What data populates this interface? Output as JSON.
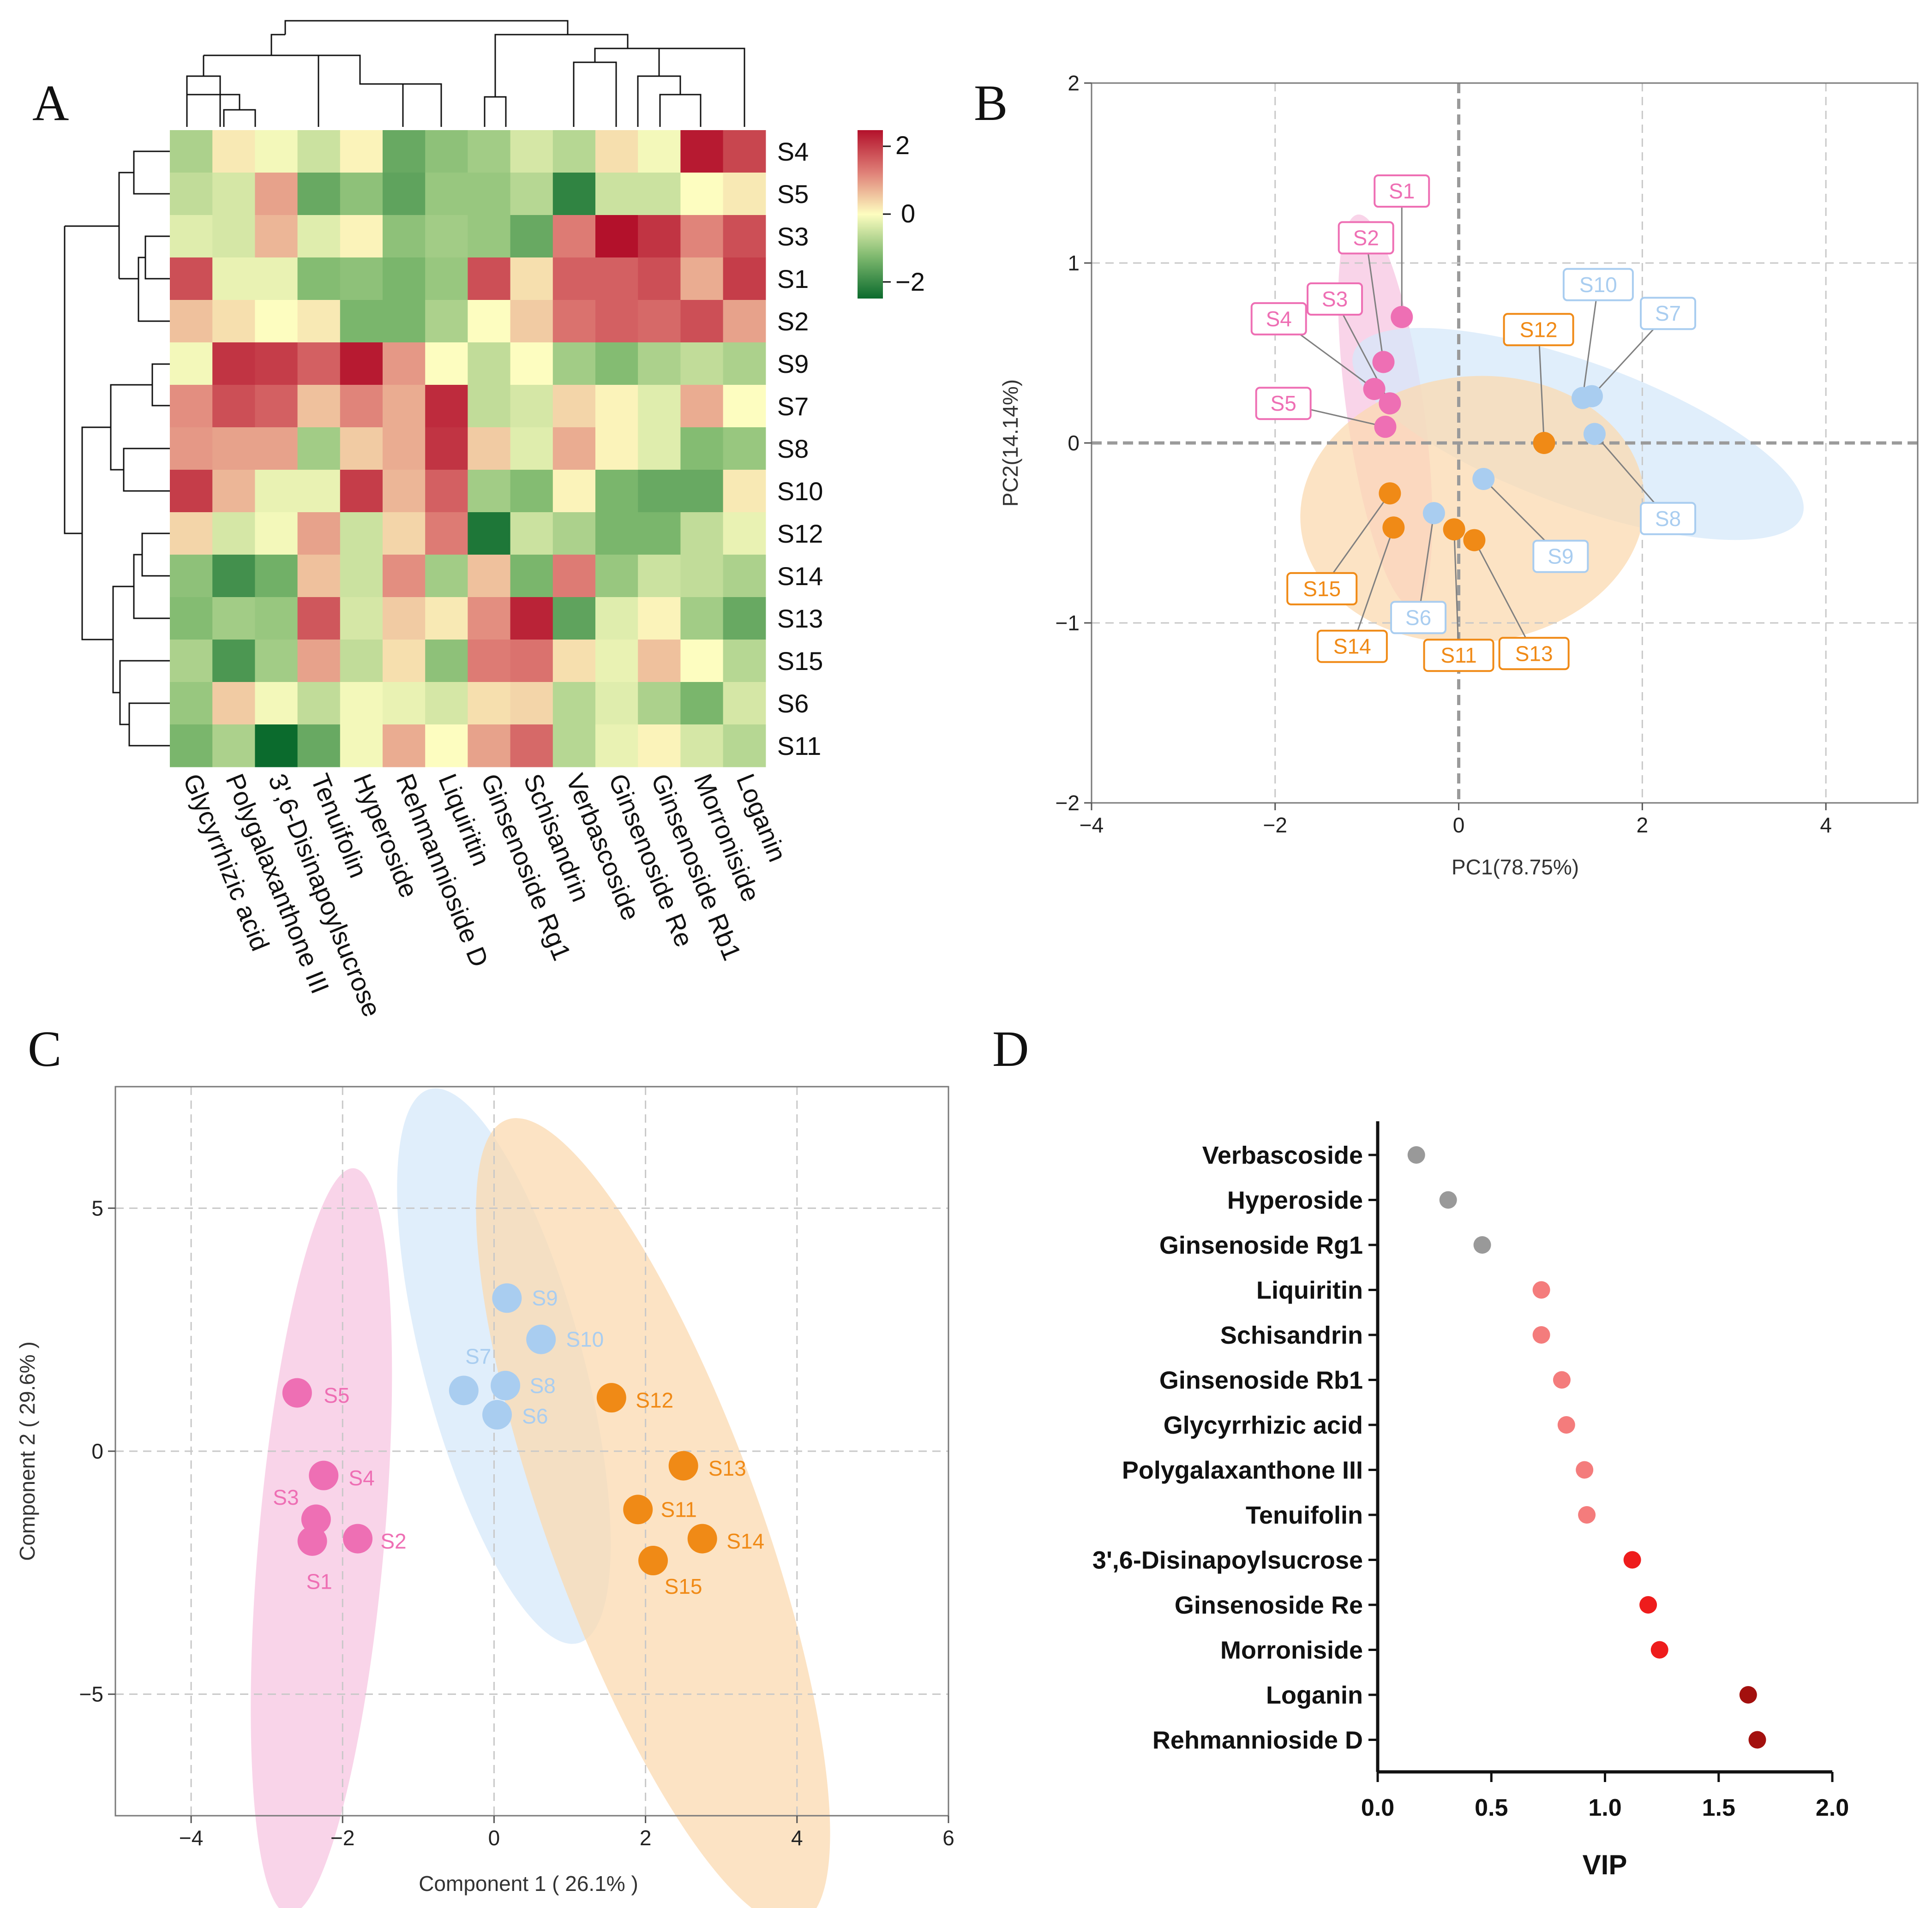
{
  "panels": {
    "a": "A",
    "b": "B",
    "c": "C",
    "d": "D"
  },
  "colors": {
    "pink": "#ee6fb4",
    "blue": "#a9cdf0",
    "orange": "#f08a16",
    "pink_fill": "#f7c6e1",
    "blue_fill": "#d6e8fa",
    "orange_fill": "#fbd9b0",
    "vip_gray": "#999999",
    "vip_light": "#f47c7c",
    "vip_red": "#ee1c1c",
    "vip_dark": "#a3100e",
    "heat_neg": "#0b6b2d",
    "heat_mid": "#fdfdc0",
    "heat_pos": "#b3112b"
  },
  "chart_data": [
    {
      "type": "heatmap",
      "panel": "A",
      "rows": [
        "S4",
        "S5",
        "S3",
        "S1",
        "S2",
        "S9",
        "S7",
        "S8",
        "S10",
        "S12",
        "S14",
        "S13",
        "S15",
        "S6",
        "S11"
      ],
      "columns": [
        "Glycyrrhizic acid",
        "Polygalaxanthone III",
        "3',6-Disinapoylsucrose",
        "Tenuifolin",
        "Hyperoside",
        "Rehmannioside D",
        "Liquiritin",
        "Ginsenoside Rg1",
        "Schisandrin",
        "Verbascoside",
        "Ginsenoside Re",
        "Ginsenoside Rb1",
        "Morroniside",
        "Loganin"
      ],
      "values": [
        [
          -0.8,
          0.2,
          -0.1,
          -0.5,
          0.1,
          -1.5,
          -1.1,
          -0.9,
          -0.4,
          -0.7,
          0.3,
          -0.1,
          2.4,
          1.9
        ],
        [
          -0.6,
          -0.4,
          0.9,
          -1.5,
          -1.1,
          -1.6,
          -1.0,
          -1.0,
          -0.7,
          -2.1,
          -0.5,
          -0.5,
          0.0,
          0.2
        ],
        [
          -0.3,
          -0.4,
          0.7,
          -0.3,
          0.1,
          -1.1,
          -0.9,
          -1.0,
          -1.5,
          1.3,
          2.5,
          2.1,
          1.2,
          1.8
        ],
        [
          1.8,
          -0.2,
          -0.2,
          -1.2,
          -1.1,
          -1.3,
          -1.0,
          1.8,
          0.3,
          1.6,
          1.6,
          1.8,
          0.8,
          2.0
        ],
        [
          0.6,
          0.3,
          0.0,
          0.2,
          -1.3,
          -1.3,
          -0.8,
          0.0,
          0.5,
          1.4,
          1.6,
          1.5,
          1.8,
          0.9
        ],
        [
          -0.1,
          2.1,
          2.0,
          1.6,
          2.4,
          1.0,
          0.0,
          -0.6,
          0.0,
          -0.9,
          -1.2,
          -0.8,
          -0.6,
          -0.8
        ],
        [
          1.1,
          1.8,
          1.6,
          0.6,
          1.2,
          0.8,
          2.2,
          -0.6,
          -0.4,
          0.4,
          0.1,
          -0.3,
          0.8,
          0.0
        ],
        [
          1.0,
          0.9,
          0.9,
          -0.9,
          0.5,
          0.8,
          2.1,
          0.5,
          -0.3,
          0.8,
          0.1,
          -0.3,
          -1.2,
          -1.0
        ],
        [
          2.0,
          0.7,
          -0.2,
          -0.2,
          2.0,
          0.7,
          1.6,
          -0.9,
          -1.2,
          0.1,
          -1.3,
          -1.5,
          -1.5,
          0.2
        ],
        [
          0.4,
          -0.4,
          -0.1,
          0.9,
          -0.5,
          0.4,
          1.3,
          -2.3,
          -0.5,
          -0.8,
          -1.3,
          -1.3,
          -0.6,
          -0.2
        ],
        [
          -1.1,
          -1.9,
          -1.4,
          0.6,
          -0.5,
          1.1,
          -0.9,
          0.6,
          -1.3,
          1.3,
          -1.0,
          -0.5,
          -0.6,
          -0.8
        ],
        [
          -1.2,
          -0.9,
          -1.0,
          1.7,
          -0.4,
          0.5,
          0.2,
          1.1,
          2.3,
          -1.6,
          -0.3,
          0.1,
          -0.9,
          -1.5
        ],
        [
          -0.8,
          -1.8,
          -0.9,
          0.9,
          -0.6,
          0.3,
          -1.1,
          1.3,
          1.4,
          0.3,
          -0.2,
          0.6,
          0.0,
          -0.7
        ],
        [
          -1.0,
          0.5,
          -0.1,
          -0.6,
          -0.1,
          -0.2,
          -0.4,
          0.3,
          0.4,
          -0.7,
          -0.3,
          -0.8,
          -1.3,
          -0.4
        ],
        [
          -1.3,
          -0.8,
          -2.5,
          -1.5,
          -0.1,
          0.8,
          0.0,
          0.9,
          1.5,
          -0.7,
          -0.2,
          0.1,
          -0.4,
          -0.7
        ]
      ],
      "legend_ticks": [
        "2",
        "0",
        "−2"
      ],
      "legend_range": [
        -2.5,
        2.5
      ]
    },
    {
      "type": "scatter",
      "panel": "B",
      "xlabel": "PC1(78.75%)",
      "ylabel": "PC2(14.14%)",
      "xlim": [
        -4,
        5
      ],
      "ylim": [
        -2,
        2
      ],
      "xticks": [
        {
          "v": -4,
          "t": "−4"
        },
        {
          "v": -2,
          "t": "−2"
        },
        {
          "v": 0,
          "t": "0"
        },
        {
          "v": 2,
          "t": "2"
        },
        {
          "v": 4,
          "t": "4"
        }
      ],
      "yticks": [
        {
          "v": -2,
          "t": "−2"
        },
        {
          "v": -1,
          "t": "−1"
        },
        {
          "v": 0,
          "t": "0"
        },
        {
          "v": 1,
          "t": "1"
        },
        {
          "v": 2,
          "t": "2"
        }
      ],
      "groups": [
        {
          "name": "pink",
          "ellipse": {
            "cx": -0.8,
            "cy": 0.18,
            "rx": 0.42,
            "ry": 1.1,
            "angle": 8
          },
          "points": [
            {
              "label": "S1",
              "x": -0.62,
              "y": 0.7,
              "lx": -0.62,
              "ly": 1.4
            },
            {
              "label": "S2",
              "x": -0.82,
              "y": 0.45,
              "lx": -1.01,
              "ly": 1.14
            },
            {
              "label": "S3",
              "x": -0.75,
              "y": 0.22,
              "lx": -1.35,
              "ly": 0.8
            },
            {
              "label": "S4",
              "x": -0.92,
              "y": 0.3,
              "lx": -1.96,
              "ly": 0.69
            },
            {
              "label": "S5",
              "x": -0.8,
              "y": 0.09,
              "lx": -1.91,
              "ly": 0.22
            }
          ]
        },
        {
          "name": "blue",
          "ellipse": {
            "cx": 1.3,
            "cy": 0.05,
            "rx": 2.6,
            "ry": 0.4,
            "angle": -20
          },
          "points": [
            {
              "label": "S10",
              "x": 1.35,
              "y": 0.25,
              "lx": 1.52,
              "ly": 0.88
            },
            {
              "label": "S7",
              "x": 1.45,
              "y": 0.26,
              "lx": 2.28,
              "ly": 0.72
            },
            {
              "label": "S8",
              "x": 1.48,
              "y": 0.05,
              "lx": 2.28,
              "ly": -0.42
            },
            {
              "label": "S9",
              "x": 0.27,
              "y": -0.2,
              "lx": 1.11,
              "ly": -0.63
            },
            {
              "label": "S6",
              "x": -0.27,
              "y": -0.39,
              "lx": -0.44,
              "ly": -0.97
            }
          ]
        },
        {
          "name": "orange",
          "ellipse": {
            "cx": 0.15,
            "cy": -0.37,
            "rx": 1.88,
            "ry": 0.74,
            "angle": 6
          },
          "points": [
            {
              "label": "S12",
              "x": 0.93,
              "y": 0.0,
              "lx": 0.87,
              "ly": 0.63
            },
            {
              "label": "S15",
              "x": -0.75,
              "y": -0.28,
              "lx": -1.49,
              "ly": -0.81
            },
            {
              "label": "S14",
              "x": -0.71,
              "y": -0.47,
              "lx": -1.16,
              "ly": -1.13
            },
            {
              "label": "S11",
              "x": -0.05,
              "y": -0.48,
              "lx": 0.0,
              "ly": -1.18
            },
            {
              "label": "S13",
              "x": 0.17,
              "y": -0.54,
              "lx": 0.82,
              "ly": -1.17
            }
          ]
        }
      ]
    },
    {
      "type": "scatter",
      "panel": "C",
      "xlabel": "Component 1 ( 26.1% )",
      "ylabel": "Component 2 ( 29.6% )",
      "xlim": [
        -5,
        6
      ],
      "ylim": [
        -7.5,
        7.5
      ],
      "xticks": [
        {
          "v": -4,
          "t": "−4"
        },
        {
          "v": -2,
          "t": "−2"
        },
        {
          "v": 0,
          "t": "0"
        },
        {
          "v": 2,
          "t": "2"
        },
        {
          "v": 4,
          "t": "4"
        },
        {
          "v": 6,
          "t": "6"
        }
      ],
      "yticks": [
        {
          "v": 5,
          "t": "5"
        },
        {
          "v": 0,
          "t": "0"
        },
        {
          "v": -5,
          "t": "−5"
        }
      ],
      "groups": [
        {
          "name": "pink",
          "ellipse": {
            "cx": -2.28,
            "cy": -1.85,
            "rx": 0.83,
            "ry": 7.7,
            "angle": -5
          },
          "points": [
            {
              "label": "S5",
              "x": -2.6,
              "y": 1.2,
              "lx": -2.25,
              "ly": 1.15
            },
            {
              "label": "S4",
              "x": -2.25,
              "y": -0.5,
              "lx": -1.92,
              "ly": -0.55
            },
            {
              "label": "S3",
              "x": -2.35,
              "y": -1.4,
              "lx": -2.92,
              "ly": -0.95
            },
            {
              "label": "S2",
              "x": -1.8,
              "y": -1.8,
              "lx": -1.5,
              "ly": -1.85
            },
            {
              "label": "S1",
              "x": -2.4,
              "y": -1.85,
              "lx": -2.48,
              "ly": -2.68
            }
          ]
        },
        {
          "name": "blue",
          "ellipse": {
            "cx": 0.13,
            "cy": 1.75,
            "rx": 1.05,
            "ry": 5.9,
            "angle": 15
          },
          "points": [
            {
              "label": "S9",
              "x": 0.17,
              "y": 3.15,
              "lx": 0.5,
              "ly": 3.15
            },
            {
              "label": "S10",
              "x": 0.62,
              "y": 2.3,
              "lx": 0.95,
              "ly": 2.3
            },
            {
              "label": "S7",
              "x": -0.4,
              "y": 1.25,
              "lx": -0.38,
              "ly": 1.95
            },
            {
              "label": "S8",
              "x": 0.15,
              "y": 1.35,
              "lx": 0.47,
              "ly": 1.35
            },
            {
              "label": "S6",
              "x": 0.04,
              "y": 0.75,
              "lx": 0.37,
              "ly": 0.72
            }
          ]
        },
        {
          "name": "orange",
          "ellipse": {
            "cx": 2.1,
            "cy": -1.45,
            "rx": 1.4,
            "ry": 8.8,
            "angle": 20
          },
          "points": [
            {
              "label": "S12",
              "x": 1.55,
              "y": 1.1,
              "lx": 1.87,
              "ly": 1.05
            },
            {
              "label": "S13",
              "x": 2.5,
              "y": -0.3,
              "lx": 2.83,
              "ly": -0.35
            },
            {
              "label": "S11",
              "x": 1.9,
              "y": -1.2,
              "lx": 2.2,
              "ly": -1.2
            },
            {
              "label": "S14",
              "x": 2.75,
              "y": -1.8,
              "lx": 3.07,
              "ly": -1.85
            },
            {
              "label": "S15",
              "x": 2.1,
              "y": -2.25,
              "lx": 2.25,
              "ly": -2.78
            }
          ]
        }
      ]
    },
    {
      "type": "scatter",
      "panel": "D",
      "xlabel": "VIP",
      "xlim": [
        0,
        2
      ],
      "xticks": [
        {
          "v": 0,
          "t": "0.0"
        },
        {
          "v": 0.5,
          "t": "0.5"
        },
        {
          "v": 1,
          "t": "1.0"
        },
        {
          "v": 1.5,
          "t": "1.5"
        },
        {
          "v": 2,
          "t": "2.0"
        }
      ],
      "categories": [
        "Verbascoside",
        "Hyperoside",
        "Ginsenoside Rg1",
        "Liquiritin",
        "Schisandrin",
        "Ginsenoside Rb1",
        "Glycyrrhizic acid",
        "Polygalaxanthone III",
        "Tenuifolin",
        "3',6-Disinapoylsucrose",
        "Ginsenoside Re",
        "Morroniside",
        "Loganin",
        "Rehmannioside D"
      ],
      "values": [
        0.17,
        0.31,
        0.46,
        0.72,
        0.72,
        0.81,
        0.83,
        0.91,
        0.92,
        1.12,
        1.19,
        1.24,
        1.63,
        1.67
      ],
      "color_class": [
        "gray",
        "gray",
        "gray",
        "light",
        "light",
        "light",
        "light",
        "light",
        "light",
        "red",
        "red",
        "red",
        "dark",
        "dark"
      ]
    }
  ]
}
